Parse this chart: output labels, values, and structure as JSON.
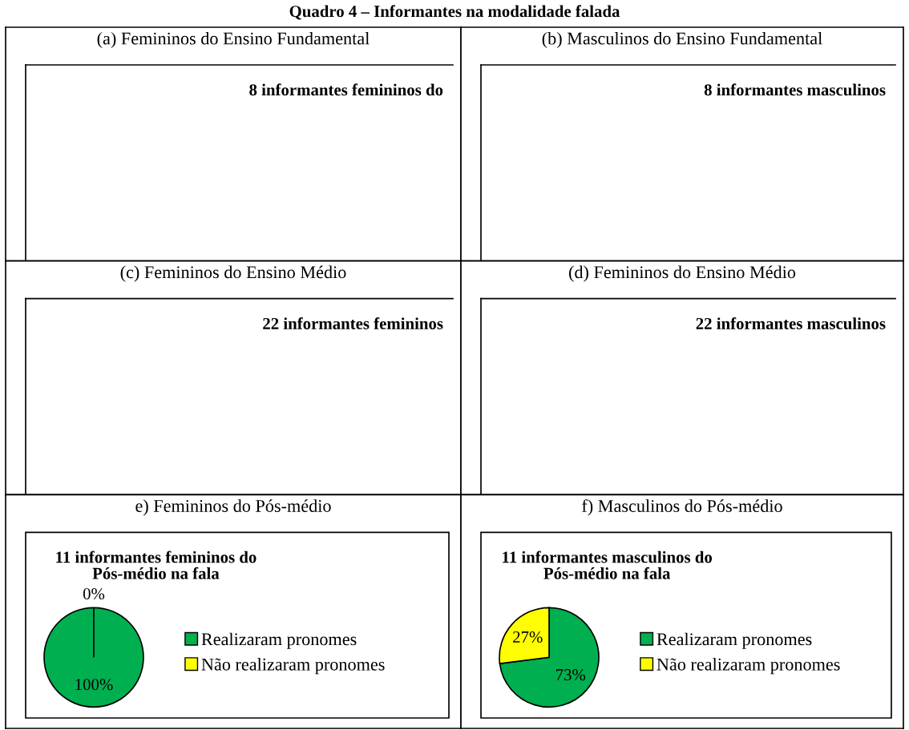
{
  "chart_data": [
    {
      "type": "other",
      "title": "(a) Femininos do Ensino Fundamental",
      "subtitle": "8 informantes femininos do",
      "annotations": [
        "Quadro 4 – Informantes na modalidade falada"
      ]
    },
    {
      "type": "other",
      "title": "(b) Masculinos do Ensino Fundamental",
      "subtitle": "8 informantes masculinos"
    },
    {
      "type": "other",
      "title": "(c) Femininos do Ensino Médio",
      "subtitle": "22 informantes femininos"
    },
    {
      "type": "other",
      "title": "(d) Femininos do Ensino Médio",
      "subtitle": "22 informantes masculinos"
    },
    {
      "type": "pie",
      "title": "e) Femininos do Pós-médio",
      "subtitle": "11 informantes femininos do\nPós-médio na fala",
      "categories": [
        "Realizaram pronomes",
        "Não realizaram pronomes"
      ],
      "values": [
        100,
        0
      ],
      "colors": [
        "#00b050",
        "#ffff00"
      ],
      "value_labels": [
        "100%",
        "0%"
      ],
      "legend": "right"
    },
    {
      "type": "pie",
      "title": "f) Masculinos do Pós-médio",
      "subtitle": "11 informantes masculinos do\nPós-médio na fala",
      "categories": [
        "Realizaram pronomes",
        "Não realizaram pronomes"
      ],
      "values": [
        73,
        27
      ],
      "colors": [
        "#00b050",
        "#ffff00"
      ],
      "value_labels": [
        "73%",
        "27%"
      ],
      "legend": "right"
    }
  ]
}
